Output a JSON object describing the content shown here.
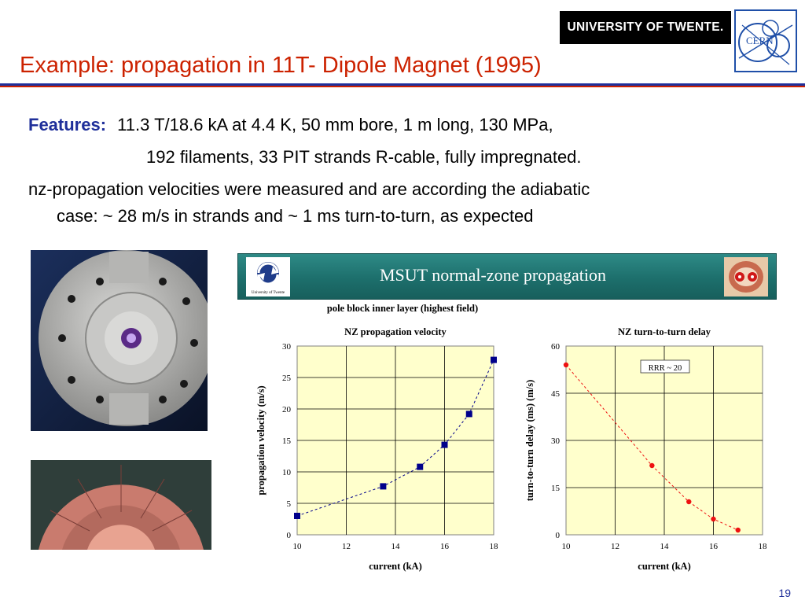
{
  "header": {
    "university_logo_text": "UNIVERSITY OF TWENTE.",
    "cern_logo_text": "CERN",
    "title": "Example: propagation in 11T- Dipole Magnet (1995)"
  },
  "body": {
    "features_label": "Features:",
    "features_line1": "11.3 T/18.6 kA at 4.4 K, 50 mm bore, 1 m long, 130 MPa,",
    "features_line2": "192 filaments,  33 PIT strands R-cable, fully impregnated.",
    "paragraph_line1": "nz-propagation velocities were measured and are according the adiabatic",
    "paragraph_line2": "case: ~ 28 m/s in strands and ~ 1 ms turn-to-turn, as expected"
  },
  "banner": {
    "title": "MSUT  normal-zone propagation",
    "logo_caption": "University of Twente"
  },
  "figure": {
    "suptitle": "pole block inner layer (highest field)"
  },
  "chart_data": [
    {
      "type": "scatter",
      "title": "NZ propagation velocity",
      "xlabel": "current (kA)",
      "ylabel": "propagation velocity (m/s)",
      "xlim": [
        10,
        18
      ],
      "ylim": [
        0,
        30
      ],
      "xticks": [
        10,
        12,
        14,
        16,
        18
      ],
      "yticks": [
        0,
        5,
        10,
        15,
        20,
        25,
        30
      ],
      "grid": true,
      "background": "#ffffcc",
      "marker": "square",
      "marker_color": "#00008b",
      "line_color": "#00008b",
      "line_style": "dashed",
      "series": [
        {
          "x": [
            10,
            13.5,
            15,
            16,
            17,
            18
          ],
          "y": [
            3,
            7.7,
            10.8,
            14.3,
            19.2,
            27.8
          ]
        }
      ]
    },
    {
      "type": "scatter",
      "title": "NZ turn-to-turn delay",
      "xlabel": "current (kA)",
      "ylabel": "turn-to-turn delay (ms) (m/s)",
      "xlim": [
        10,
        18
      ],
      "ylim": [
        0,
        60
      ],
      "xticks": [
        10,
        12,
        14,
        16,
        18
      ],
      "yticks": [
        0,
        15,
        30,
        45,
        60
      ],
      "grid": true,
      "background": "#ffffcc",
      "marker": "circle",
      "marker_color": "#ee1111",
      "line_color": "#ee1111",
      "line_style": "dashed",
      "annotation": "RRR ~ 20",
      "series": [
        {
          "x": [
            10,
            13.5,
            15,
            16,
            17
          ],
          "y": [
            54,
            22,
            10.5,
            5,
            1.5
          ]
        }
      ]
    }
  ],
  "page_number": "19"
}
